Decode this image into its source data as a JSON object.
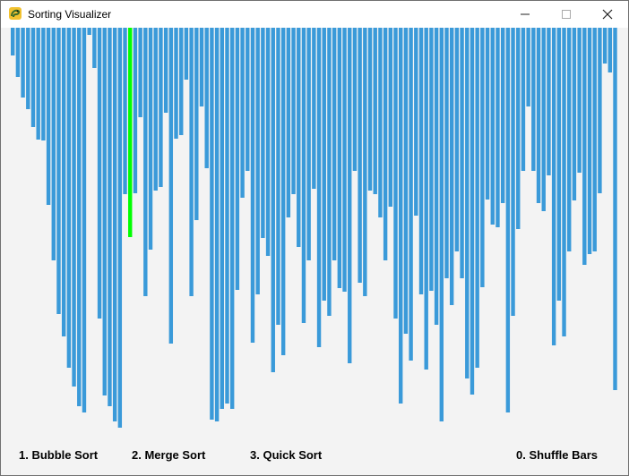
{
  "window": {
    "title": "Sorting Visualizer",
    "icon": "pygame-snake-icon"
  },
  "menu": {
    "bubble": "1. Bubble Sort",
    "merge": "2. Merge Sort",
    "quick": "3. Quick Sort",
    "shuffle": "0. Shuffle Bars"
  },
  "colors": {
    "bar": "#3a9ad9",
    "highlight": "#00ff00",
    "background": "#f3f3f3"
  },
  "chart_data": {
    "type": "bar",
    "ylim": [
      0,
      448
    ],
    "highlight_index": 23,
    "values": [
      31,
      55,
      78,
      91,
      111,
      125,
      126,
      198,
      260,
      320,
      345,
      380,
      401,
      423,
      430,
      8,
      45,
      325,
      411,
      423,
      440,
      447,
      186,
      234,
      185,
      100,
      300,
      248,
      182,
      178,
      95,
      353,
      124,
      120,
      58,
      300,
      215,
      88,
      157,
      438,
      440,
      426,
      420,
      426,
      293,
      190,
      160,
      352,
      298,
      235,
      255,
      385,
      332,
      366,
      212,
      186,
      245,
      330,
      260,
      180,
      357,
      305,
      322,
      260,
      291,
      295,
      375,
      160,
      285,
      300,
      182,
      186,
      212,
      260,
      200,
      325,
      420,
      342,
      372,
      210,
      298,
      382,
      294,
      332,
      440,
      280,
      310,
      250,
      280,
      392,
      410,
      380,
      290,
      192,
      220,
      223,
      196,
      430,
      322,
      225,
      160,
      88,
      160,
      196,
      205,
      165,
      355,
      305,
      345,
      250,
      193,
      162,
      265,
      253,
      250,
      185,
      40,
      50,
      405
    ]
  }
}
